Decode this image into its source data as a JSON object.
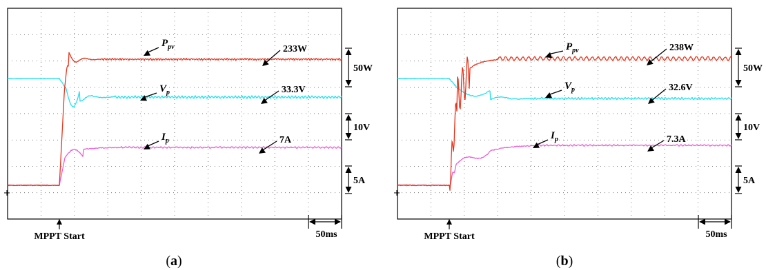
{
  "chart_data": [
    {
      "type": "line",
      "caption_letter": "a",
      "trigger_label": "MPPT Start",
      "timebase_label": "50ms",
      "series": [
        {
          "name": "P_pv",
          "symbol": "P",
          "subscript": "pv",
          "color": "#e8341c",
          "final_label": "233W",
          "scale_label": "50W"
        },
        {
          "name": "V_p",
          "symbol": "V",
          "subscript": "p",
          "color": "#22e0ee",
          "final_label": "33.3V",
          "scale_label": "10V"
        },
        {
          "name": "I_p",
          "symbol": "I",
          "subscript": "p",
          "color": "#ec5cd8",
          "final_label": "7A",
          "scale_label": "5A"
        }
      ]
    },
    {
      "type": "line",
      "caption_letter": "b",
      "trigger_label": "MPPT Start",
      "timebase_label": "50ms",
      "series": [
        {
          "name": "P_pv",
          "symbol": "P",
          "subscript": "pv",
          "color": "#e8341c",
          "final_label": "238W",
          "scale_label": "50W"
        },
        {
          "name": "V_p",
          "symbol": "V",
          "subscript": "p",
          "color": "#22e0ee",
          "final_label": "32.6V",
          "scale_label": "10V"
        },
        {
          "name": "I_p",
          "symbol": "I",
          "subscript": "p",
          "color": "#ec5cd8",
          "final_label": "7.3A",
          "scale_label": "5A"
        }
      ]
    }
  ],
  "caption_parens": [
    "(",
    ")"
  ]
}
